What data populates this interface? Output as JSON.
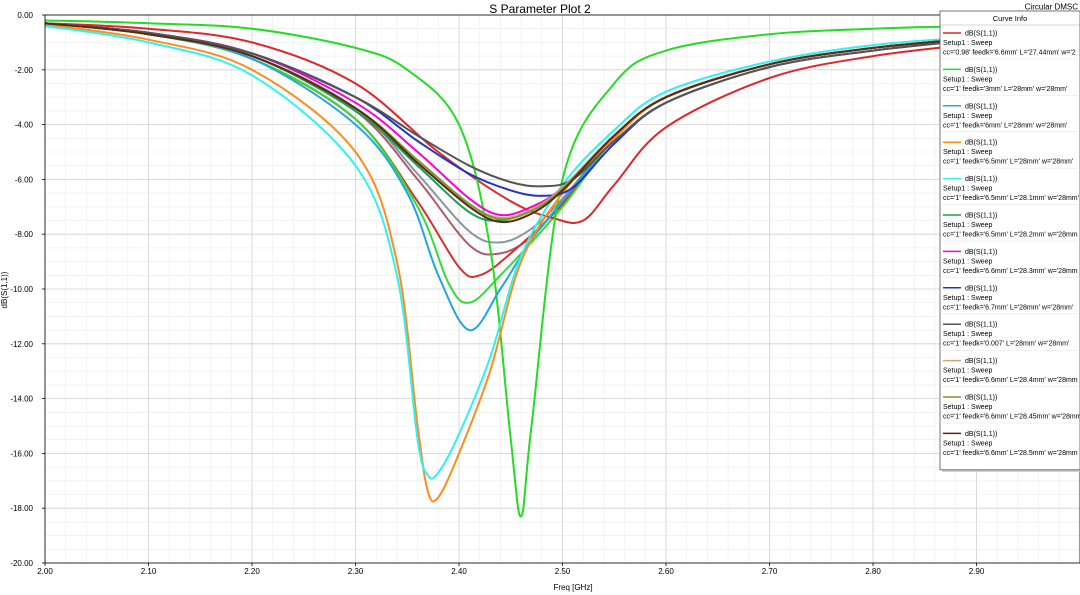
{
  "chart_data": {
    "type": "line",
    "title": "S Parameter Plot 2",
    "corner_label": "Circular DMSC",
    "xlabel": "Freq [GHz]",
    "ylabel": "dB(S(1,1))",
    "xlim": [
      2.0,
      3.0
    ],
    "ylim": [
      -20.0,
      0.0
    ],
    "x_ticks": [
      "2.00",
      "2.10",
      "2.20",
      "2.30",
      "2.40",
      "2.50",
      "2.60",
      "2.70",
      "2.80",
      "2.90"
    ],
    "y_ticks": [
      "0.00",
      "-2.00",
      "-4.00",
      "-6.00",
      "-8.00",
      "-10.00",
      "-12.00",
      "-14.00",
      "-16.00",
      "-18.00",
      "-20.00"
    ],
    "grid": true,
    "legend": {
      "title": "Curve Info",
      "placement": "top-right"
    },
    "series": [
      {
        "name": "dB(S(1,1))",
        "setup": "Setup1 : Sweep",
        "params": "cc='0.98' feedk='6.6mm' L='27.44mm' w='2",
        "color": "#e0262b",
        "points": [
          [
            2.0,
            -0.3
          ],
          [
            2.1,
            -0.5
          ],
          [
            2.2,
            -1.0
          ],
          [
            2.3,
            -2.5
          ],
          [
            2.38,
            -5.0
          ],
          [
            2.45,
            -6.8
          ],
          [
            2.49,
            -7.4
          ],
          [
            2.52,
            -7.5
          ],
          [
            2.55,
            -6.2
          ],
          [
            2.6,
            -4.1
          ],
          [
            2.7,
            -2.3
          ],
          [
            2.8,
            -1.5
          ],
          [
            2.9,
            -1.05
          ]
        ]
      },
      {
        "name": "dB(S(1,1))",
        "setup": "Setup1 : Sweep",
        "params": "cc='1' feedk='3mm' L='28mm' w='28mm'",
        "color": "#22dd22",
        "points": [
          [
            2.0,
            -0.2
          ],
          [
            2.1,
            -0.3
          ],
          [
            2.2,
            -0.5
          ],
          [
            2.3,
            -1.2
          ],
          [
            2.35,
            -2.0
          ],
          [
            2.4,
            -4.0
          ],
          [
            2.43,
            -8.5
          ],
          [
            2.45,
            -15.5
          ],
          [
            2.46,
            -18.3
          ],
          [
            2.47,
            -15.0
          ],
          [
            2.5,
            -6.0
          ],
          [
            2.55,
            -2.5
          ],
          [
            2.6,
            -1.3
          ],
          [
            2.7,
            -0.7
          ],
          [
            2.8,
            -0.5
          ],
          [
            2.9,
            -0.4
          ]
        ]
      },
      {
        "name": "dB(S(1,1))",
        "setup": "Setup1 : Sweep",
        "params": "cc='1' feedk='6mm' L='28mm' w='28mm'",
        "color": "#1fa8e0",
        "points": [
          [
            2.0,
            -0.3
          ],
          [
            2.1,
            -0.7
          ],
          [
            2.2,
            -1.6
          ],
          [
            2.3,
            -4.0
          ],
          [
            2.35,
            -6.5
          ],
          [
            2.38,
            -9.5
          ],
          [
            2.41,
            -11.5
          ],
          [
            2.44,
            -10.0
          ],
          [
            2.47,
            -8.2
          ],
          [
            2.5,
            -6.8
          ],
          [
            2.55,
            -4.5
          ],
          [
            2.6,
            -3.0
          ],
          [
            2.7,
            -1.8
          ],
          [
            2.8,
            -1.2
          ],
          [
            2.9,
            -0.85
          ]
        ]
      },
      {
        "name": "dB(S(1,1))",
        "setup": "Setup1 : Sweep",
        "params": "cc='1' feedk='6.5mm' L='28mm' w='28mm'",
        "color": "#ff8c1a",
        "points": [
          [
            2.0,
            -0.35
          ],
          [
            2.1,
            -0.9
          ],
          [
            2.2,
            -2.0
          ],
          [
            2.3,
            -5.0
          ],
          [
            2.34,
            -9.0
          ],
          [
            2.36,
            -15.0
          ],
          [
            2.37,
            -17.4
          ],
          [
            2.38,
            -17.6
          ],
          [
            2.4,
            -16.0
          ],
          [
            2.43,
            -13.0
          ],
          [
            2.46,
            -9.0
          ],
          [
            2.5,
            -6.5
          ],
          [
            2.55,
            -4.5
          ],
          [
            2.6,
            -3.0
          ],
          [
            2.7,
            -1.8
          ],
          [
            2.8,
            -1.2
          ],
          [
            2.9,
            -0.85
          ]
        ]
      },
      {
        "name": "dB(S(1,1))",
        "setup": "Setup1 : Sweep",
        "params": "cc='1' feedk='6.5mm' L='28.1mm' w='28mm'",
        "color": "#2ef2f2",
        "points": [
          [
            2.0,
            -0.4
          ],
          [
            2.1,
            -1.0
          ],
          [
            2.2,
            -2.2
          ],
          [
            2.3,
            -5.5
          ],
          [
            2.34,
            -9.5
          ],
          [
            2.36,
            -15.5
          ],
          [
            2.37,
            -16.8
          ],
          [
            2.38,
            -16.7
          ],
          [
            2.4,
            -15.3
          ],
          [
            2.43,
            -12.5
          ],
          [
            2.46,
            -8.8
          ],
          [
            2.5,
            -6.2
          ],
          [
            2.55,
            -4.2
          ],
          [
            2.6,
            -2.8
          ],
          [
            2.7,
            -1.7
          ],
          [
            2.8,
            -1.1
          ],
          [
            2.9,
            -0.8
          ]
        ]
      },
      {
        "name": "dB(S(1,1))",
        "setup": "Setup1 : Sweep",
        "params": "cc='1' feedk='6.5mm' L='28.2mm' w='28mm",
        "color": "#1a9d55",
        "points": [
          [
            2.0,
            -0.3
          ],
          [
            2.1,
            -0.7
          ],
          [
            2.2,
            -1.5
          ],
          [
            2.3,
            -3.5
          ],
          [
            2.36,
            -5.5
          ],
          [
            2.41,
            -7.2
          ],
          [
            2.44,
            -7.5
          ],
          [
            2.47,
            -7.1
          ],
          [
            2.5,
            -6.3
          ],
          [
            2.55,
            -4.4
          ],
          [
            2.6,
            -3.0
          ],
          [
            2.7,
            -1.8
          ],
          [
            2.8,
            -1.2
          ],
          [
            2.9,
            -0.85
          ]
        ]
      },
      {
        "name": "dB(S(1,1))",
        "setup": "Setup1 : Sweep",
        "params": "cc='1' feedk='6.6mm' L='28.3mm' w='28mm",
        "color": "#ff00d4",
        "points": [
          [
            2.0,
            -0.3
          ],
          [
            2.1,
            -0.65
          ],
          [
            2.2,
            -1.4
          ],
          [
            2.3,
            -3.2
          ],
          [
            2.36,
            -5.0
          ],
          [
            2.41,
            -6.7
          ],
          [
            2.44,
            -7.3
          ],
          [
            2.47,
            -7.0
          ],
          [
            2.5,
            -6.3
          ],
          [
            2.55,
            -4.4
          ],
          [
            2.6,
            -3.0
          ],
          [
            2.7,
            -1.8
          ],
          [
            2.8,
            -1.2
          ],
          [
            2.9,
            -0.85
          ]
        ]
      },
      {
        "name": "dB(S(1,1))",
        "setup": "Setup1 : Sweep",
        "params": "cc='1' feedk='6.7mm' L='28mm' w='28mm'",
        "color": "#2233cc",
        "points": [
          [
            2.0,
            -0.3
          ],
          [
            2.1,
            -0.65
          ],
          [
            2.2,
            -1.4
          ],
          [
            2.3,
            -3.0
          ],
          [
            2.36,
            -4.6
          ],
          [
            2.41,
            -5.8
          ],
          [
            2.45,
            -6.4
          ],
          [
            2.48,
            -6.6
          ],
          [
            2.51,
            -6.3
          ],
          [
            2.55,
            -4.7
          ],
          [
            2.6,
            -3.2
          ],
          [
            2.7,
            -1.9
          ],
          [
            2.8,
            -1.3
          ],
          [
            2.9,
            -0.9
          ]
        ]
      },
      {
        "name": "dB(S(1,1))",
        "setup": "Setup1 : Sweep",
        "params": "cc='1' feedk='0.007' L='28mm' w='28mm'",
        "color": "#555555",
        "points": [
          [
            2.0,
            -0.3
          ],
          [
            2.1,
            -0.65
          ],
          [
            2.2,
            -1.4
          ],
          [
            2.3,
            -3.0
          ],
          [
            2.36,
            -4.4
          ],
          [
            2.41,
            -5.5
          ],
          [
            2.45,
            -6.1
          ],
          [
            2.48,
            -6.25
          ],
          [
            2.51,
            -6.0
          ],
          [
            2.55,
            -4.6
          ],
          [
            2.6,
            -3.2
          ],
          [
            2.7,
            -1.9
          ],
          [
            2.8,
            -1.3
          ],
          [
            2.9,
            -0.9
          ]
        ]
      },
      {
        "name": "dB(S(1,1))",
        "setup": "Setup1 : Sweep",
        "params": "cc='1' feedk='6.6mm' L='28.4mm' w='28mm",
        "color": "#d4a373",
        "points": [
          [
            2.0,
            -0.3
          ],
          [
            2.1,
            -0.7
          ],
          [
            2.2,
            -1.5
          ],
          [
            2.3,
            -3.4
          ],
          [
            2.36,
            -5.3
          ],
          [
            2.41,
            -6.9
          ],
          [
            2.44,
            -7.4
          ],
          [
            2.47,
            -7.1
          ],
          [
            2.5,
            -6.3
          ],
          [
            2.55,
            -4.4
          ],
          [
            2.6,
            -3.0
          ],
          [
            2.7,
            -1.8
          ],
          [
            2.8,
            -1.2
          ],
          [
            2.9,
            -0.85
          ]
        ]
      },
      {
        "name": "dB(S(1,1))",
        "setup": "Setup1 : Sweep",
        "params": "cc='1' feedk='6.6mm' L='28.45mm' w='28mm",
        "color": "#7a9a2a",
        "points": [
          [
            2.0,
            -0.3
          ],
          [
            2.1,
            -0.7
          ],
          [
            2.2,
            -1.5
          ],
          [
            2.3,
            -3.4
          ],
          [
            2.36,
            -5.3
          ],
          [
            2.41,
            -6.9
          ],
          [
            2.44,
            -7.45
          ],
          [
            2.47,
            -7.15
          ],
          [
            2.5,
            -6.35
          ],
          [
            2.55,
            -4.4
          ],
          [
            2.6,
            -3.0
          ],
          [
            2.7,
            -1.8
          ],
          [
            2.8,
            -1.2
          ],
          [
            2.9,
            -0.85
          ]
        ]
      },
      {
        "name": "dB(S(1,1))",
        "setup": "Setup1 : Sweep",
        "params": "cc='1' feedk='6.6mm' L='28.5mm' w='28mm",
        "color": "#5a2a14",
        "points": [
          [
            2.0,
            -0.3
          ],
          [
            2.1,
            -0.7
          ],
          [
            2.2,
            -1.5
          ],
          [
            2.3,
            -3.4
          ],
          [
            2.36,
            -5.4
          ],
          [
            2.41,
            -7.0
          ],
          [
            2.44,
            -7.55
          ],
          [
            2.47,
            -7.25
          ],
          [
            2.5,
            -6.4
          ],
          [
            2.55,
            -4.4
          ],
          [
            2.6,
            -3.0
          ],
          [
            2.7,
            -1.8
          ],
          [
            2.8,
            -1.2
          ],
          [
            2.9,
            -0.85
          ]
        ]
      }
    ],
    "extra_curves_unlisted": [
      {
        "color": "#8895a4",
        "points": [
          [
            2.0,
            -0.3
          ],
          [
            2.1,
            -0.7
          ],
          [
            2.2,
            -1.5
          ],
          [
            2.3,
            -3.4
          ],
          [
            2.36,
            -5.8
          ],
          [
            2.41,
            -7.9
          ],
          [
            2.44,
            -8.3
          ],
          [
            2.47,
            -7.8
          ],
          [
            2.5,
            -6.7
          ],
          [
            2.55,
            -4.5
          ],
          [
            2.6,
            -3.0
          ],
          [
            2.7,
            -1.8
          ],
          [
            2.8,
            -1.2
          ],
          [
            2.9,
            -0.85
          ]
        ]
      },
      {
        "color": "#b05a6a",
        "points": [
          [
            2.0,
            -0.3
          ],
          [
            2.1,
            -0.7
          ],
          [
            2.2,
            -1.5
          ],
          [
            2.3,
            -3.5
          ],
          [
            2.36,
            -6.0
          ],
          [
            2.41,
            -8.4
          ],
          [
            2.44,
            -8.7
          ],
          [
            2.47,
            -8.1
          ],
          [
            2.5,
            -6.8
          ],
          [
            2.55,
            -4.5
          ],
          [
            2.6,
            -3.0
          ],
          [
            2.7,
            -1.8
          ],
          [
            2.8,
            -1.2
          ],
          [
            2.9,
            -0.85
          ]
        ]
      },
      {
        "color": "#d63030",
        "points": [
          [
            2.0,
            -0.3
          ],
          [
            2.1,
            -0.7
          ],
          [
            2.2,
            -1.6
          ],
          [
            2.3,
            -3.8
          ],
          [
            2.36,
            -6.8
          ],
          [
            2.4,
            -9.2
          ],
          [
            2.42,
            -9.5
          ],
          [
            2.45,
            -8.7
          ],
          [
            2.5,
            -6.9
          ],
          [
            2.55,
            -4.5
          ],
          [
            2.6,
            -3.0
          ],
          [
            2.7,
            -1.8
          ],
          [
            2.8,
            -1.2
          ],
          [
            2.9,
            -0.85
          ]
        ]
      },
      {
        "color": "#33dd33",
        "points": [
          [
            2.0,
            -0.3
          ],
          [
            2.1,
            -0.7
          ],
          [
            2.2,
            -1.6
          ],
          [
            2.3,
            -3.8
          ],
          [
            2.36,
            -7.0
          ],
          [
            2.39,
            -9.8
          ],
          [
            2.41,
            -10.5
          ],
          [
            2.44,
            -9.5
          ],
          [
            2.5,
            -7.0
          ],
          [
            2.55,
            -4.5
          ],
          [
            2.6,
            -3.0
          ],
          [
            2.7,
            -1.8
          ],
          [
            2.8,
            -1.2
          ],
          [
            2.9,
            -0.85
          ]
        ]
      }
    ]
  }
}
